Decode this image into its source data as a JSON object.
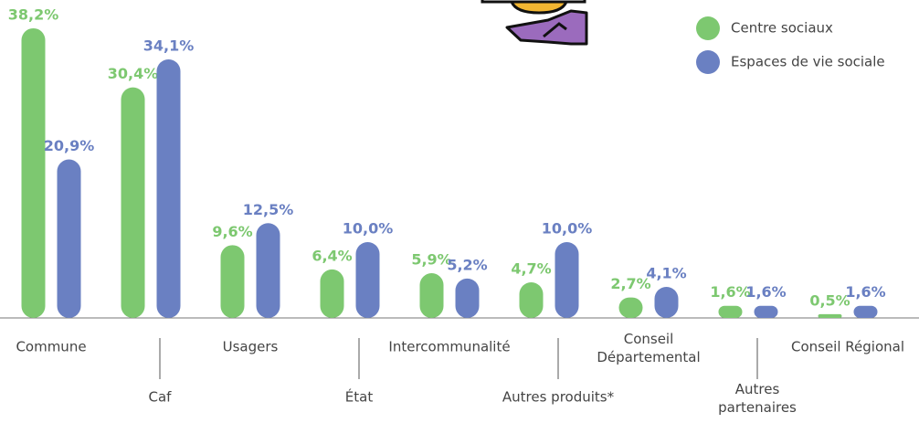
{
  "chart_data": {
    "type": "bar",
    "categories": [
      "Commune",
      "Caf",
      "Usagers",
      "État",
      "Intercommunalité",
      "Autres produits*",
      "Conseil\nDépartemental",
      "Autres\npartenaires",
      "Conseil Régional"
    ],
    "series": [
      {
        "name": "Centre sociaux",
        "color": "#7dc870",
        "values": [
          38.2,
          30.4,
          9.6,
          6.4,
          5.9,
          4.7,
          2.7,
          1.6,
          0.5
        ],
        "value_labels": [
          "38,2%",
          "30,4%",
          "9,6%",
          "6,4%",
          "5,9%",
          "4,7%",
          "2,7%",
          "1,6%",
          "0,5%"
        ]
      },
      {
        "name": "Espaces de vie sociale",
        "color": "#6a80c2",
        "values": [
          20.9,
          34.1,
          12.5,
          10.0,
          5.2,
          10.0,
          4.1,
          1.6,
          1.6
        ],
        "value_labels": [
          "20,9%",
          "34,1%",
          "12,5%",
          "10,0%",
          "5,2%",
          "10,0%",
          "4,1%",
          "1,6%",
          "1,6%"
        ]
      }
    ],
    "legend": "top-right"
  }
}
